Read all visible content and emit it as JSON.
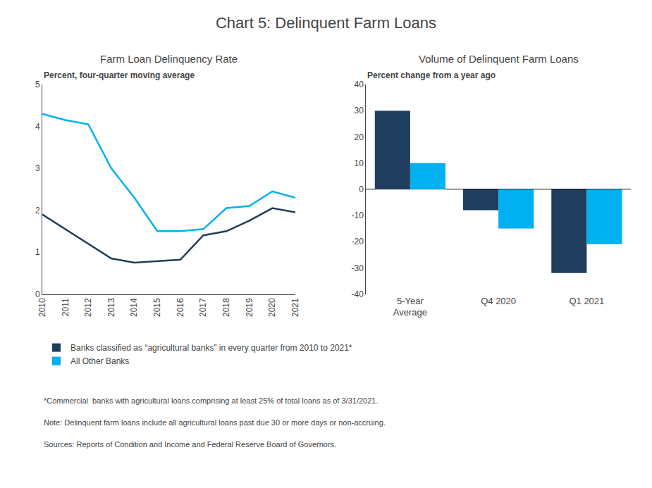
{
  "title": "Chart 5: Delinquent Farm Loans",
  "annotations": [
    "*Commercial  banks with agricultural loans comprising at least 25% of total loans as of 3/31/2021.",
    "Note: Delinquent farm loans include all agricultural loans past due 30 or more days or non-accruing.",
    "Sources: Reports of Condition and Income and Federal Reserve Board of Governors."
  ],
  "chart_data": [
    {
      "type": "line",
      "title": "Farm Loan Delinquency Rate",
      "ylabel": "Percent, four-quarter moving average",
      "x": [
        2010,
        2011,
        2012,
        2013,
        2014,
        2015,
        2016,
        2017,
        2018,
        2019,
        2020,
        2021
      ],
      "series": [
        {
          "name": "All Other Banks",
          "color": "#00b0f0",
          "values": [
            4.3,
            4.15,
            4.05,
            3.0,
            2.3,
            1.5,
            1.5,
            1.55,
            2.05,
            2.1,
            2.45,
            2.3
          ]
        },
        {
          "name": "Banks classified as “agricultural banks” in every quarter from 2010 to 2021*",
          "color": "#1f3d5c",
          "values": [
            1.9,
            1.55,
            1.2,
            0.85,
            0.75,
            0.78,
            0.82,
            1.4,
            1.5,
            1.75,
            2.05,
            1.95
          ]
        }
      ],
      "xlim": [
        2010,
        2021
      ],
      "xticks": [
        2010,
        2011,
        2012,
        2013,
        2014,
        2015,
        2016,
        2017,
        2018,
        2019,
        2020,
        2021
      ],
      "ylim": [
        0,
        5
      ],
      "yticks": [
        0,
        1,
        2,
        3,
        4,
        5
      ],
      "grid": false
    },
    {
      "type": "bar",
      "title": "Volume of Delinquent Farm Loans",
      "ylabel": "Percent change from a year ago",
      "categories": [
        "5-Year\nAverage",
        "Q4 2020",
        "Q1 2021"
      ],
      "series": [
        {
          "name": "Banks classified as “agricultural banks” in every quarter from 2010 to 2021*",
          "color": "#1f3d5c",
          "values": [
            30,
            -8,
            -32
          ]
        },
        {
          "name": "All Other Banks",
          "color": "#00b0f0",
          "values": [
            10,
            -15,
            -21
          ]
        }
      ],
      "ylim": [
        -40,
        40
      ],
      "yticks": [
        -40,
        -30,
        -20,
        -10,
        0,
        10,
        20,
        30,
        40
      ],
      "grid": false,
      "legend": "bottom left"
    }
  ]
}
